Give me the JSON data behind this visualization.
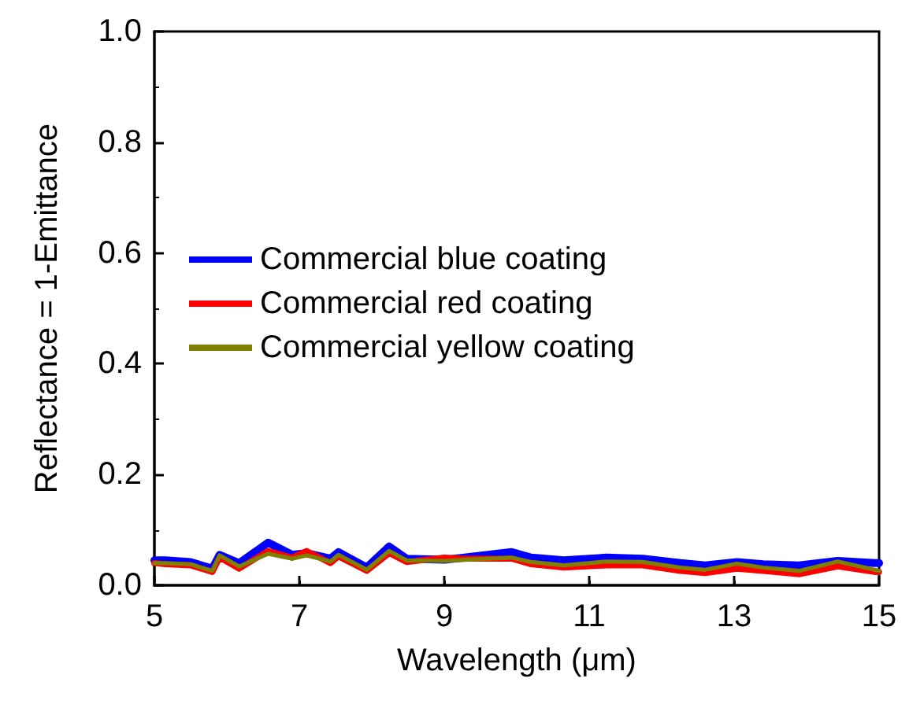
{
  "chart_data": {
    "type": "line",
    "xlabel": "Wavelength (μm)",
    "ylabel": "Reflectance = 1-Emittance",
    "x": [
      5,
      5.15,
      5.5,
      5.8,
      5.9,
      6.17,
      6.57,
      6.9,
      7.1,
      7.43,
      7.54,
      7.93,
      8.24,
      8.48,
      9,
      9.28,
      9.93,
      10.2,
      10.65,
      11.24,
      11.74,
      12.26,
      12.6,
      13.04,
      13.4,
      13.9,
      14.43,
      14.94,
      15
    ],
    "series": [
      {
        "name": "Commercial blue coating",
        "color": "#0000ff",
        "values": [
          0.045,
          0.045,
          0.042,
          0.03,
          0.055,
          0.04,
          0.077,
          0.055,
          0.058,
          0.048,
          0.06,
          0.032,
          0.07,
          0.048,
          0.046,
          0.05,
          0.06,
          0.05,
          0.045,
          0.05,
          0.048,
          0.04,
          0.036,
          0.042,
          0.038,
          0.036,
          0.044,
          0.04,
          0.04
        ]
      },
      {
        "name": "Commercial red coating",
        "color": "#ff0000",
        "values": [
          0.04,
          0.038,
          0.036,
          0.024,
          0.05,
          0.03,
          0.062,
          0.05,
          0.062,
          0.04,
          0.052,
          0.026,
          0.058,
          0.042,
          0.05,
          0.048,
          0.048,
          0.038,
          0.032,
          0.036,
          0.036,
          0.026,
          0.022,
          0.03,
          0.026,
          0.02,
          0.034,
          0.024,
          0.024
        ]
      },
      {
        "name": "Commercial yellow coating",
        "color": "#808000",
        "values": [
          0.04,
          0.04,
          0.038,
          0.026,
          0.054,
          0.034,
          0.057,
          0.048,
          0.054,
          0.043,
          0.055,
          0.028,
          0.062,
          0.045,
          0.044,
          0.046,
          0.05,
          0.042,
          0.036,
          0.043,
          0.042,
          0.032,
          0.028,
          0.039,
          0.032,
          0.026,
          0.043,
          0.028,
          0.026
        ]
      }
    ],
    "xlim": [
      5,
      15
    ],
    "xticks": [
      5,
      7,
      9,
      11,
      13,
      15
    ],
    "ylim": [
      0,
      1
    ],
    "yticks": [
      {
        "value": 0,
        "label": "0.0"
      },
      {
        "value": 0.2,
        "label": "0.2"
      },
      {
        "value": 0.4,
        "label": "0.4"
      },
      {
        "value": 0.6,
        "label": "0.6"
      },
      {
        "value": 0.8,
        "label": "0.8"
      },
      {
        "value": 1,
        "label": "1.0"
      }
    ],
    "legend": "left",
    "grid": false,
    "marker": "none",
    "line_style": "solid"
  }
}
